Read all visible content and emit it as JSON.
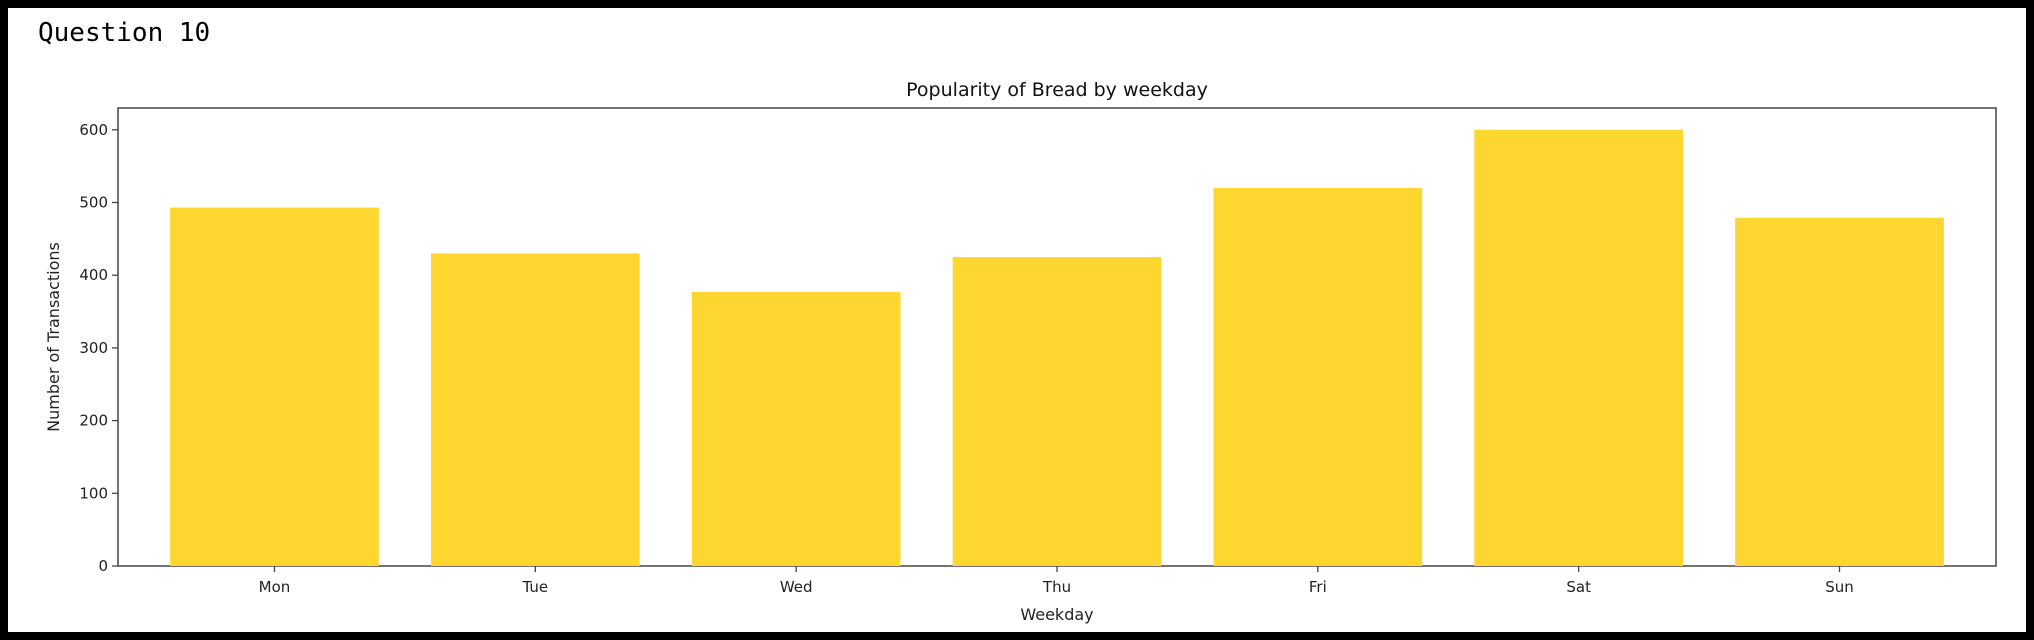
{
  "cell": {
    "label": "Question 10"
  },
  "colors": {
    "bar": "#fdd630",
    "axes": "#444444",
    "background": "#ffffff",
    "page": "#000000"
  },
  "chart_data": {
    "type": "bar",
    "title": "Popularity of Bread by weekday",
    "xlabel": "Weekday",
    "ylabel": "Number of Transactions",
    "categories": [
      "Mon",
      "Tue",
      "Wed",
      "Thu",
      "Fri",
      "Sat",
      "Sun"
    ],
    "values": [
      493,
      430,
      377,
      425,
      520,
      600,
      479
    ],
    "ylim": [
      0,
      630
    ],
    "yticks": [
      0,
      100,
      200,
      300,
      400,
      500,
      600
    ],
    "grid": false,
    "legend": "none"
  }
}
